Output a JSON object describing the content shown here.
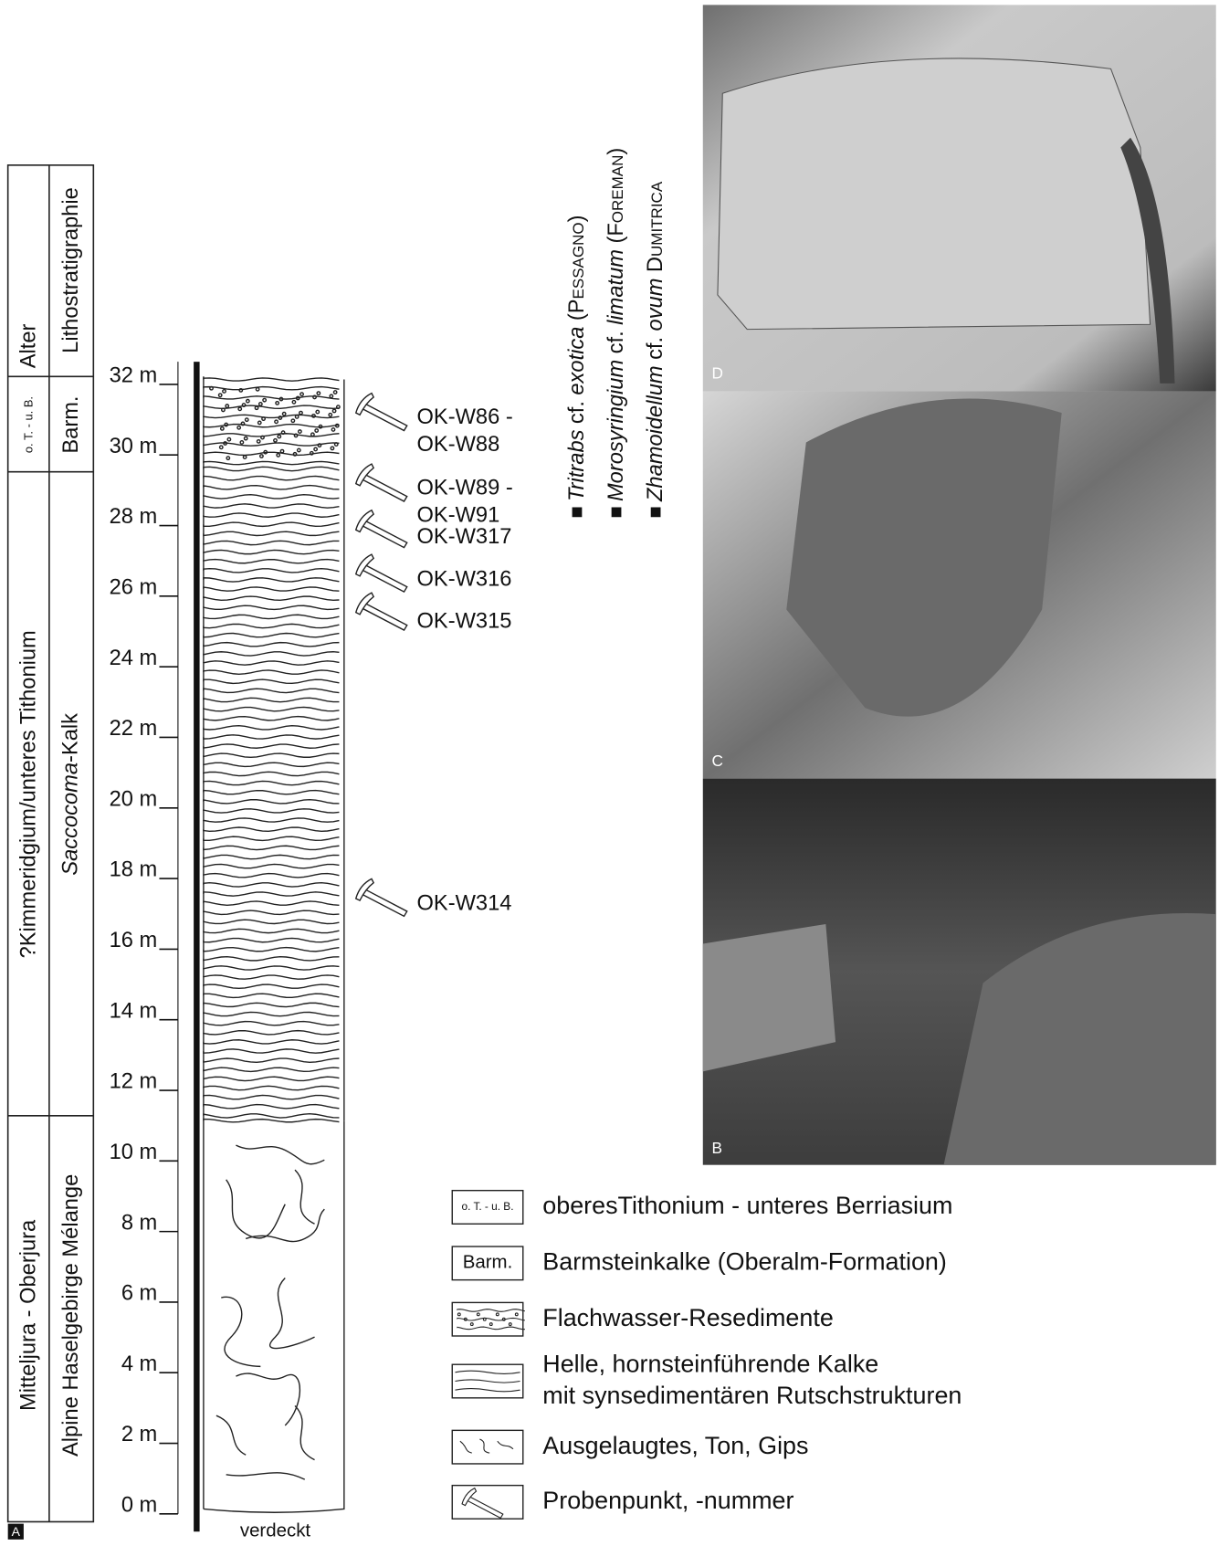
{
  "panel_label": "A",
  "columns": {
    "alter": "Alter",
    "litho": "Lithostratigraphie",
    "units": [
      {
        "age": "o. T. - u. B.",
        "litho": "Barm."
      },
      {
        "age": "?Kimmeridgium/unteres Tithonium",
        "litho_italic": "Saccocoma",
        "litho_rest": "-Kalk"
      },
      {
        "age": "Mitteljura - Oberjura",
        "litho": "Alpine Haselgebirge Mélange"
      }
    ]
  },
  "depth_ticks": [
    "0 m",
    "2 m",
    "4 m",
    "6 m",
    "8 m",
    "10 m",
    "12 m",
    "14 m",
    "16 m",
    "18 m",
    "20 m",
    "22 m",
    "24 m",
    "26 m",
    "28 m",
    "30 m",
    "32 m"
  ],
  "covered": "verdeckt",
  "samples": [
    [
      "OK-W86 -",
      "OK-W88"
    ],
    [
      "OK-W89 -",
      "OK-W91"
    ],
    [
      "OK-W317"
    ],
    [
      "OK-W316"
    ],
    [
      "OK-W315"
    ],
    [
      "OK-W314"
    ]
  ],
  "taxa": [
    {
      "genus": "Tritrabs",
      "qualifier": "cf.",
      "species": "exotica",
      "author": "(Pessagno)"
    },
    {
      "genus": "Morosyringium",
      "qualifier": "cf.",
      "species": "limatum",
      "author": "(Foreman)"
    },
    {
      "genus": "Zhamoidellum",
      "qualifier": "cf.",
      "species": "ovum",
      "author": "Dumitrica"
    }
  ],
  "photos": [
    "D",
    "C",
    "B"
  ],
  "legend": [
    {
      "symbol": "o. T. - u. B.",
      "label": [
        "oberesTithonium - unteres Berriasium"
      ]
    },
    {
      "symbol": "Barm.",
      "label": [
        "Barmsteinkalke (Oberalm-Formation)"
      ]
    },
    {
      "label": [
        "Flachwasser-Resedimente"
      ]
    },
    {
      "label": [
        "Helle, hornsteinführende Kalke",
        "mit synsedimentären Rutschstrukturen"
      ]
    },
    {
      "label": [
        "Ausgelaugtes, Ton, Gips"
      ]
    },
    {
      "label": [
        "Probenpunkt, -nummer"
      ]
    }
  ]
}
